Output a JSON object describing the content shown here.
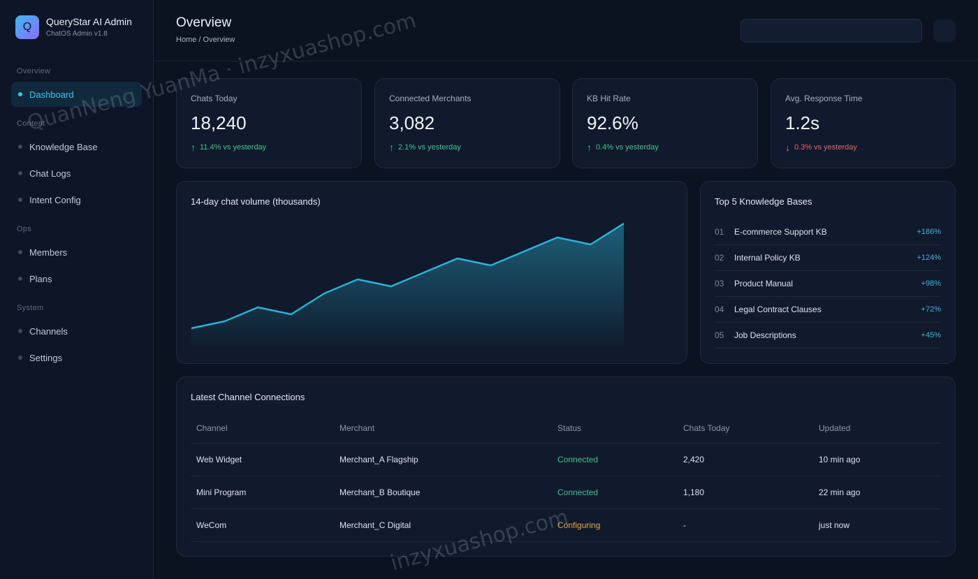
{
  "brand": {
    "logo_letter": "Q",
    "title": "QueryStar AI Admin",
    "subtitle": "ChatOS Admin v1.8"
  },
  "nav": {
    "sections": [
      {
        "label": "Overview",
        "items": [
          {
            "label": "Dashboard",
            "active": true
          }
        ]
      },
      {
        "label": "Content",
        "items": [
          {
            "label": "Knowledge Base"
          },
          {
            "label": "Chat Logs"
          },
          {
            "label": "Intent Config"
          }
        ]
      },
      {
        "label": "Ops",
        "items": [
          {
            "label": "Members"
          },
          {
            "label": "Plans"
          }
        ]
      },
      {
        "label": "System",
        "items": [
          {
            "label": "Channels"
          },
          {
            "label": "Settings"
          }
        ]
      }
    ]
  },
  "header": {
    "title": "Overview",
    "breadcrumb": "Home / Overview"
  },
  "stats": [
    {
      "label": "Chats Today",
      "value": "18,240",
      "delta": "11.4% vs yesterday",
      "trend": "up",
      "arrow": "↑"
    },
    {
      "label": "Connected Merchants",
      "value": "3,082",
      "delta": "2.1% vs yesterday",
      "trend": "up",
      "arrow": "↑"
    },
    {
      "label": "KB Hit Rate",
      "value": "92.6%",
      "delta": "0.4% vs yesterday",
      "trend": "up",
      "arrow": "↑"
    },
    {
      "label": "Avg. Response Time",
      "value": "1.2s",
      "delta": "0.3% vs yesterday",
      "trend": "down",
      "arrow": "↓"
    }
  ],
  "chart_data": {
    "type": "area",
    "title": "14-day chat volume (thousands)",
    "x": [
      1,
      2,
      3,
      4,
      5,
      6,
      7,
      8,
      9,
      10,
      11,
      12,
      13,
      14
    ],
    "series": [
      {
        "values": [
          2,
          3,
          5,
          4,
          7,
          9,
          8,
          10,
          12,
          11,
          13,
          15,
          14,
          17
        ]
      }
    ],
    "ylim": [
      0,
      17
    ],
    "grid": false,
    "color": "#2bb3d6"
  },
  "top_kb": {
    "title": "Top 5 Knowledge Bases",
    "items": [
      {
        "rank": "01",
        "name": "E-commerce Support KB",
        "growth": "+186%"
      },
      {
        "rank": "02",
        "name": "Internal Policy KB",
        "growth": "+124%"
      },
      {
        "rank": "03",
        "name": "Product Manual",
        "growth": "+98%"
      },
      {
        "rank": "04",
        "name": "Legal Contract Clauses",
        "growth": "+72%"
      },
      {
        "rank": "05",
        "name": "Job Descriptions",
        "growth": "+45%"
      }
    ]
  },
  "connections": {
    "title": "Latest Channel Connections",
    "columns": [
      "Channel",
      "Merchant",
      "Status",
      "Chats Today",
      "Updated"
    ],
    "rows": [
      {
        "channel": "Web Widget",
        "merchant": "Merchant_A Flagship",
        "status": "Connected",
        "chats": "2,420",
        "updated": "10 min ago"
      },
      {
        "channel": "Mini Program",
        "merchant": "Merchant_B Boutique",
        "status": "Connected",
        "chats": "1,180",
        "updated": "22 min ago"
      },
      {
        "channel": "WeCom",
        "merchant": "Merchant_C Digital",
        "status": "Configuring",
        "chats": "-",
        "updated": "just now"
      }
    ]
  },
  "watermarks": [
    "QuanNeng YuanMa · inzyxuashop.com",
    "inzyxuashop.com"
  ]
}
